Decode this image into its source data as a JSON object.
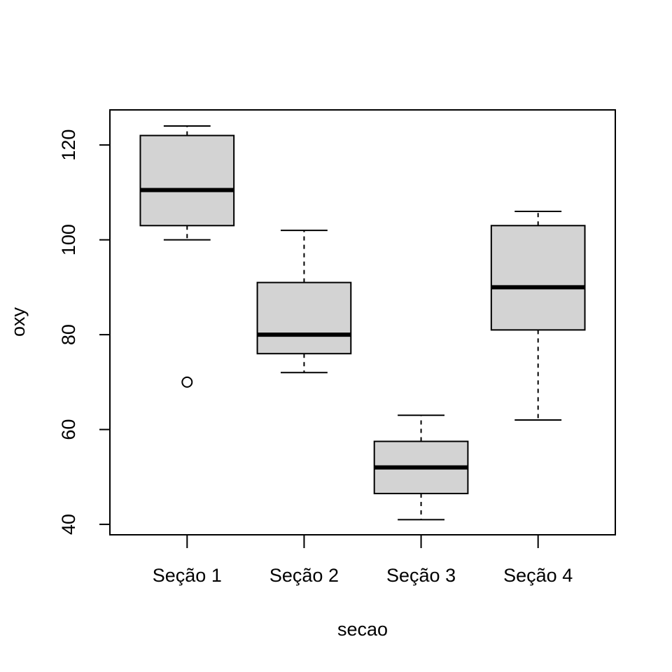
{
  "chart_data": {
    "type": "box",
    "x_label": "secao",
    "y_label": "oxy",
    "categories": [
      "Seção 1",
      "Seção 2",
      "Seção 3",
      "Seção 4"
    ],
    "color": "#d3d3d3",
    "boxes": [
      {
        "whisker_low": 100,
        "q1": 103,
        "median": 110.5,
        "q3": 122,
        "whisker_high": 124,
        "outliers": [
          70
        ]
      },
      {
        "whisker_low": 72,
        "q1": 76,
        "median": 80,
        "q3": 91,
        "whisker_high": 102,
        "outliers": []
      },
      {
        "whisker_low": 41,
        "q1": 46.5,
        "median": 52,
        "q3": 57.5,
        "whisker_high": 63,
        "outliers": []
      },
      {
        "whisker_low": 62,
        "q1": 81,
        "median": 90,
        "q3": 103,
        "whisker_high": 106,
        "outliers": []
      }
    ],
    "ylim": [
      37.8,
      127.4
    ],
    "yticks": [
      40,
      60,
      80,
      100,
      120
    ]
  }
}
